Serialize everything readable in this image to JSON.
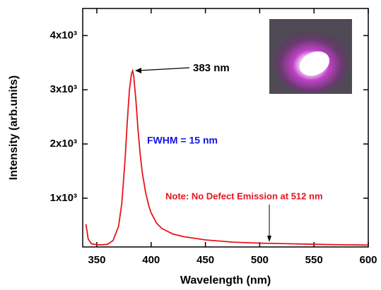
{
  "chart_data": {
    "type": "line",
    "x_label": "Wavelength (nm)",
    "y_label": "Intensity (arb.units)",
    "x": [
      340,
      342,
      345,
      350,
      355,
      360,
      365,
      370,
      373,
      376,
      378,
      380,
      382,
      383,
      384,
      386,
      388,
      390,
      392,
      395,
      398,
      400,
      405,
      410,
      420,
      430,
      450,
      475,
      500,
      525,
      550,
      575,
      600
    ],
    "series": [
      {
        "color": "#e8141c",
        "values": [
          520,
          250,
          160,
          140,
          140,
          150,
          220,
          480,
          900,
          1700,
          2400,
          3000,
          3300,
          3350,
          3250,
          2800,
          2250,
          1800,
          1450,
          1100,
          850,
          730,
          540,
          440,
          340,
          290,
          230,
          190,
          170,
          160,
          150,
          140,
          135
        ]
      }
    ],
    "xlim": [
      337,
      600
    ],
    "xticks": [
      350,
      400,
      450,
      500,
      550,
      600
    ],
    "ylim": [
      100,
      4500
    ],
    "yticks": [
      {
        "value": 1000,
        "label": "1x10³"
      },
      {
        "value": 2000,
        "label": "2x10³"
      },
      {
        "value": 3000,
        "label": "3x10³"
      },
      {
        "value": 4000,
        "label": "4x10³"
      }
    ],
    "annotations": [
      "383 nm",
      "FWHM = 15  nm",
      "Note: No Defect Emission at 512 nm"
    ]
  }
}
